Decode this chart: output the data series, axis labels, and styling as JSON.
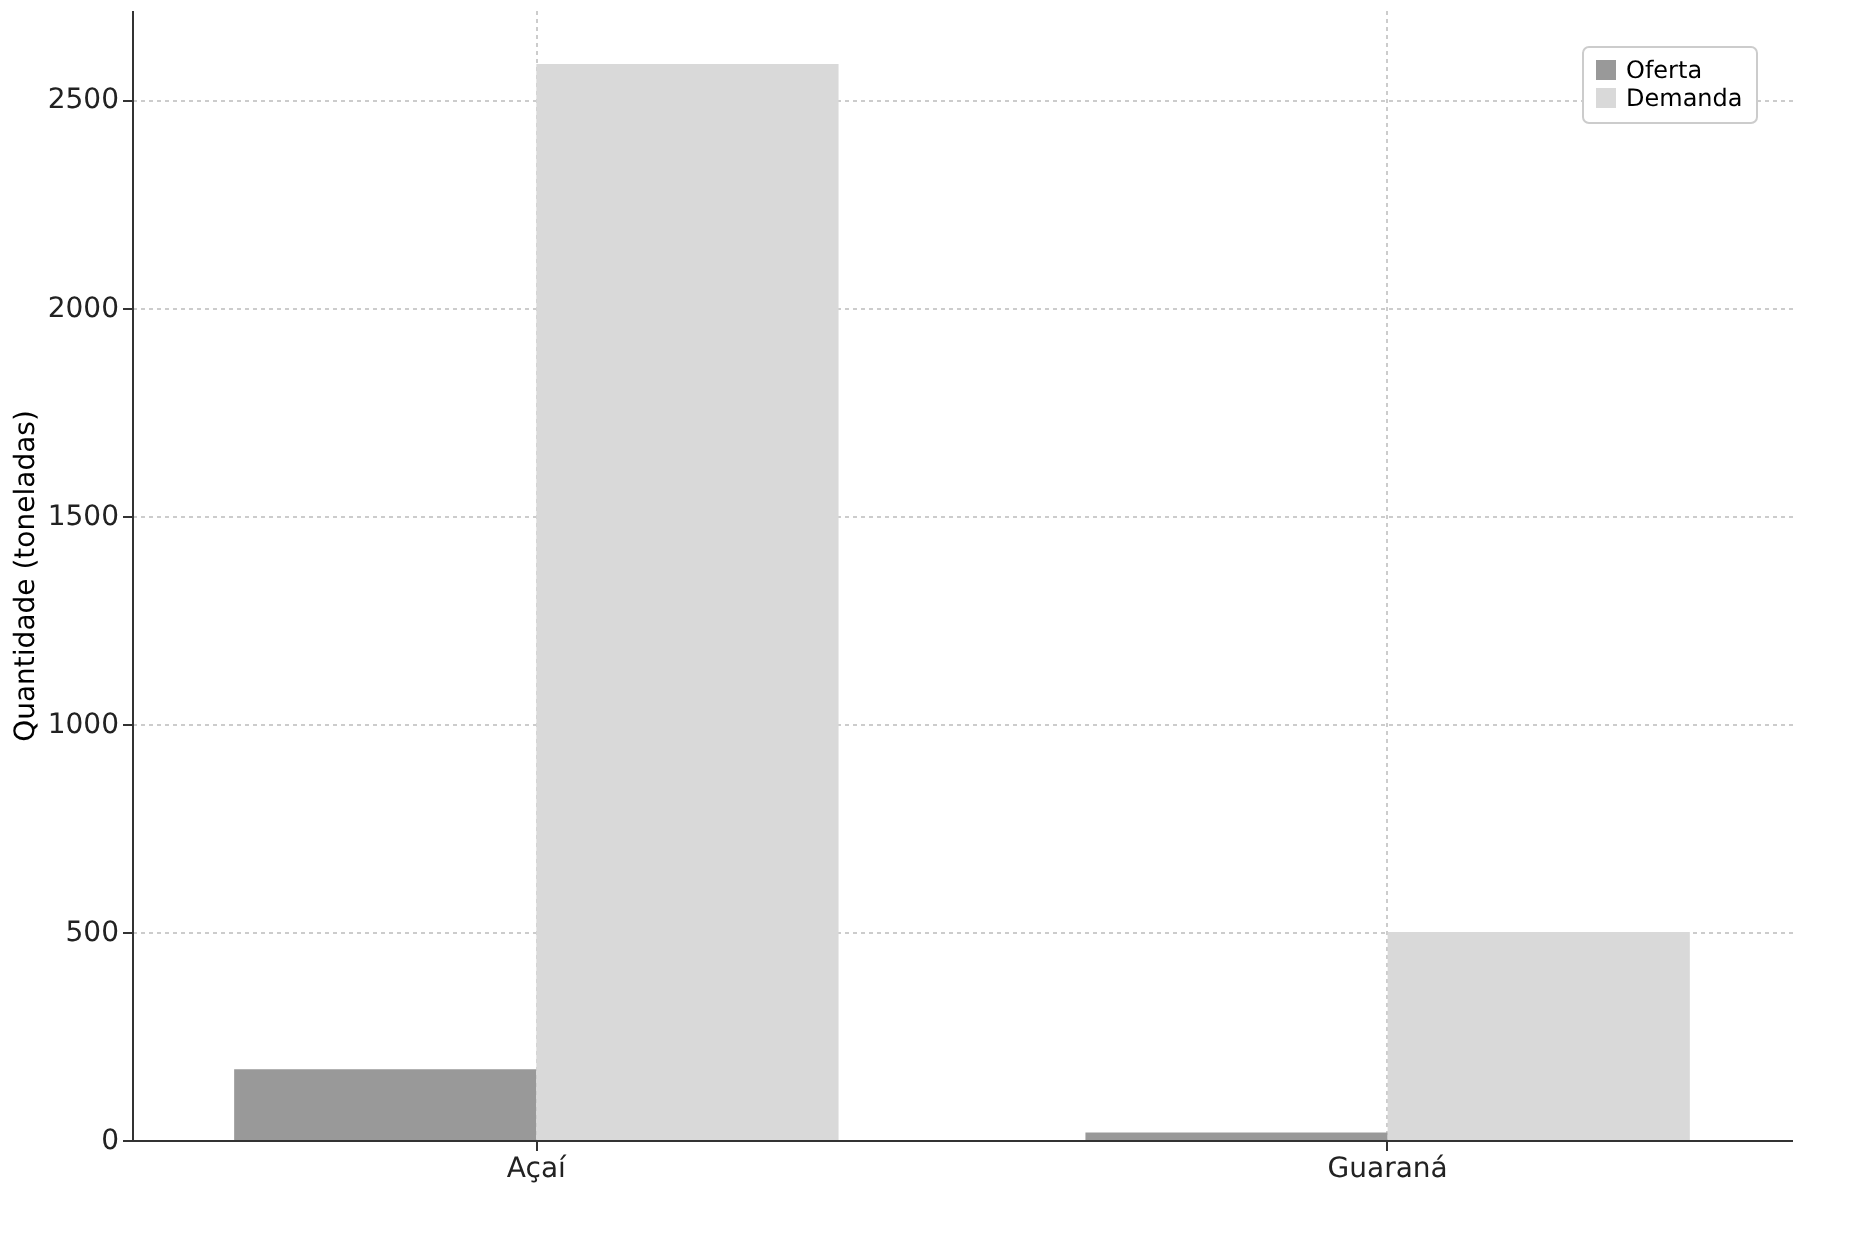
{
  "chart_data": {
    "type": "bar",
    "ylabel": "Quantidade (toneladas)",
    "categories": [
      "Açaí",
      "Guaraná"
    ],
    "series": [
      {
        "name": "Oferta",
        "color": "#999999",
        "values": [
          170,
          18
        ]
      },
      {
        "name": "Demanda",
        "color": "#d9d9d9",
        "values": [
          2585,
          500
        ]
      }
    ],
    "ylim": [
      0,
      2715
    ],
    "yticks": [
      0,
      500,
      1000,
      1500,
      2000,
      2500
    ],
    "grid": true,
    "legend": "top right"
  }
}
